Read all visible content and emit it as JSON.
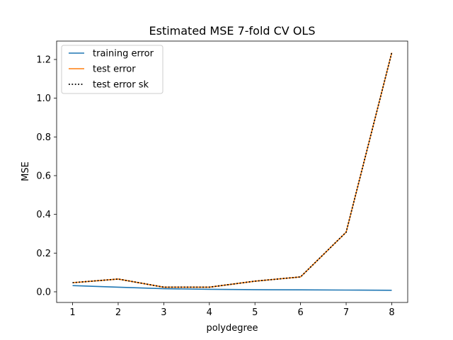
{
  "chart_data": {
    "type": "line",
    "title": "Estimated MSE 7-fold CV OLS",
    "xlabel": "polydegree",
    "ylabel": "MSE",
    "x": [
      1,
      2,
      3,
      4,
      5,
      6,
      7,
      8
    ],
    "xlim": [
      0.65,
      8.35
    ],
    "ylim": [
      -0.055,
      1.295
    ],
    "xticks": [
      1,
      2,
      3,
      4,
      5,
      6,
      7,
      8
    ],
    "yticks": [
      0.0,
      0.2,
      0.4,
      0.6,
      0.8,
      1.0,
      1.2
    ],
    "ytick_labels": [
      "0.0",
      "0.2",
      "0.4",
      "0.6",
      "0.8",
      "1.0",
      "1.2"
    ],
    "grid": false,
    "legend_position": "top-left",
    "series": [
      {
        "name": "training error",
        "color": "#1f77b4",
        "style": "solid",
        "values": [
          0.032,
          0.024,
          0.016,
          0.013,
          0.011,
          0.01,
          0.009,
          0.008
        ]
      },
      {
        "name": "test error",
        "color": "#ff7f0e",
        "style": "solid",
        "values": [
          0.047,
          0.066,
          0.024,
          0.024,
          0.055,
          0.077,
          0.308,
          1.235
        ]
      },
      {
        "name": "test error sk",
        "color": "#000000",
        "style": "dotted",
        "values": [
          0.047,
          0.066,
          0.024,
          0.024,
          0.055,
          0.077,
          0.308,
          1.235
        ]
      }
    ]
  }
}
